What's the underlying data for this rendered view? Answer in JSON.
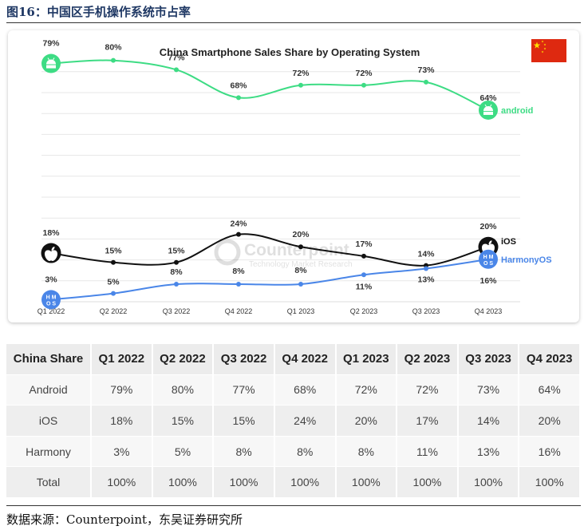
{
  "figure_title": "图16：中国区手机操作系统市占率",
  "source_text": "数据来源：Counterpoint，东吴证券研究所",
  "watermark": {
    "brand": "Counterpoint",
    "tagline": "Technology Market Research"
  },
  "colors": {
    "android": "#3ddc84",
    "ios": "#111111",
    "harmony": "#4a86e8",
    "flag": "#de2910",
    "flag_star": "#ffde00"
  },
  "chart_data": {
    "type": "line",
    "title": "China Smartphone Sales Share by Operating System",
    "categories": [
      "Q1 2022",
      "Q2 2022",
      "Q3 2022",
      "Q4 2022",
      "Q1 2023",
      "Q2 2023",
      "Q3 2023",
      "Q4 2023"
    ],
    "series": [
      {
        "name": "android",
        "values": [
          79,
          80,
          77,
          68,
          72,
          72,
          73,
          64
        ],
        "color": "#3ddc84",
        "icon": "android-icon"
      },
      {
        "name": "iOS",
        "values": [
          18,
          15,
          15,
          24,
          20,
          17,
          14,
          20
        ],
        "color": "#111111",
        "icon": "apple-icon"
      },
      {
        "name": "HarmonyOS",
        "values": [
          3,
          5,
          8,
          8,
          8,
          11,
          13,
          16
        ],
        "color": "#4a86e8",
        "icon": "harmonyos-icon",
        "badge": [
          "H",
          "M",
          "O",
          "S"
        ]
      }
    ],
    "value_suffix": "%",
    "ylim": [
      0,
      85
    ],
    "grid": true,
    "legend": "inline labels at right end"
  },
  "table": {
    "headers": [
      "China Share",
      "Q1 2022",
      "Q2 2022",
      "Q3 2022",
      "Q4 2022",
      "Q1 2023",
      "Q2 2023",
      "Q3 2023",
      "Q4 2023"
    ],
    "rows": [
      [
        "Android",
        "79%",
        "80%",
        "77%",
        "68%",
        "72%",
        "72%",
        "73%",
        "64%"
      ],
      [
        "iOS",
        "18%",
        "15%",
        "15%",
        "24%",
        "20%",
        "17%",
        "14%",
        "20%"
      ],
      [
        "Harmony",
        "3%",
        "5%",
        "8%",
        "8%",
        "8%",
        "11%",
        "13%",
        "16%"
      ],
      [
        "Total",
        "100%",
        "100%",
        "100%",
        "100%",
        "100%",
        "100%",
        "100%",
        "100%"
      ]
    ]
  }
}
